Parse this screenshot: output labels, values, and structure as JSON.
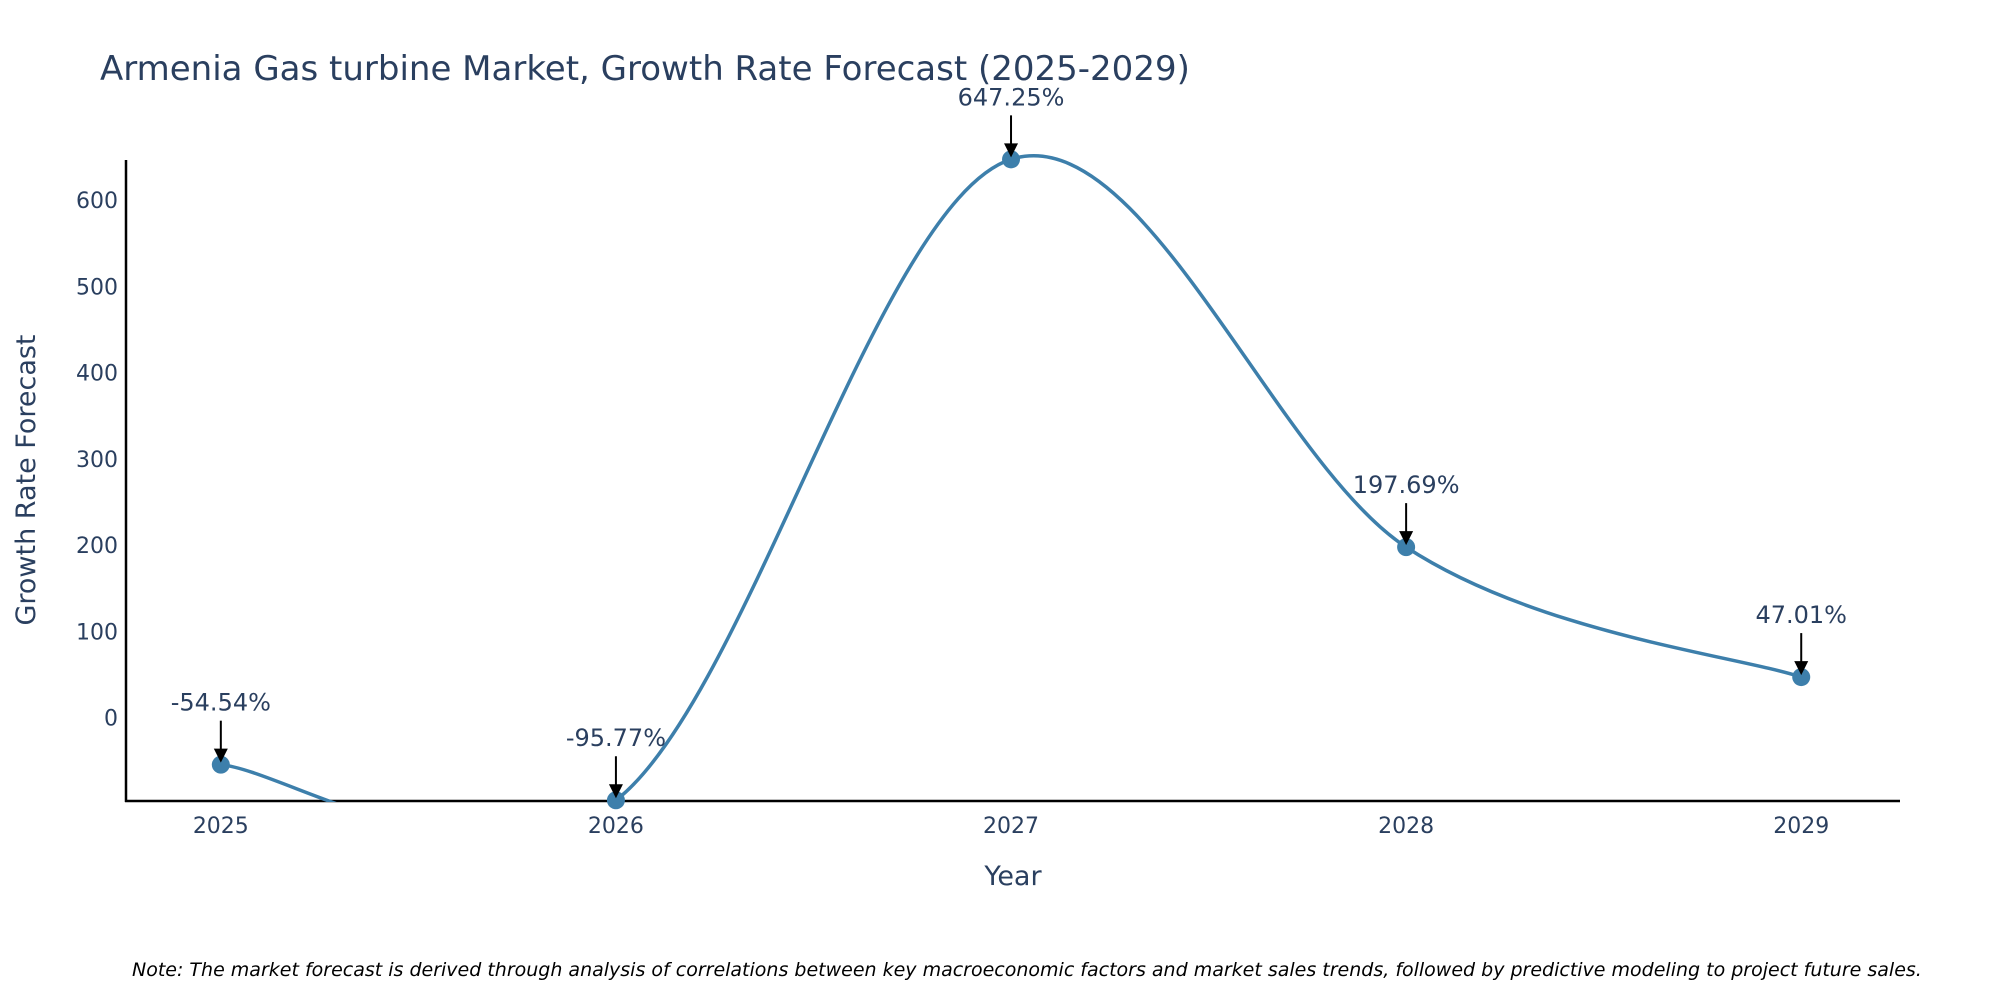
{
  "chart_data": {
    "type": "line",
    "title": "Armenia Gas turbine Market, Growth Rate Forecast (2025-2029)",
    "xlabel": "Year",
    "ylabel": "Growth Rate Forecast",
    "categories": [
      "2025",
      "2026",
      "2027",
      "2028",
      "2029"
    ],
    "series": [
      {
        "name": "Growth Rate Forecast",
        "values": [
          -54.54,
          -95.77,
          647.25,
          197.69,
          47.01
        ]
      }
    ],
    "data_labels": [
      "-54.54%",
      "-95.77%",
      "647.25%",
      "197.69%",
      "47.01%"
    ],
    "y_ticks": [
      0,
      100,
      200,
      300,
      400,
      500,
      600
    ],
    "y_tick_labels": [
      "0",
      "100",
      "200",
      "300",
      "400",
      "500",
      "600"
    ],
    "ylim": [
      -97.8,
      646.5
    ],
    "x_range": [
      -0.24,
      4.25
    ],
    "line_shape": "spline",
    "line_color": "#3d7fab",
    "marker_color": "#3d7fab",
    "grid": false,
    "legend": "none",
    "note": "Note: The market forecast is derived through analysis of correlations between key macroeconomic factors and market sales trends, followed by predictive modeling to project future sales."
  }
}
